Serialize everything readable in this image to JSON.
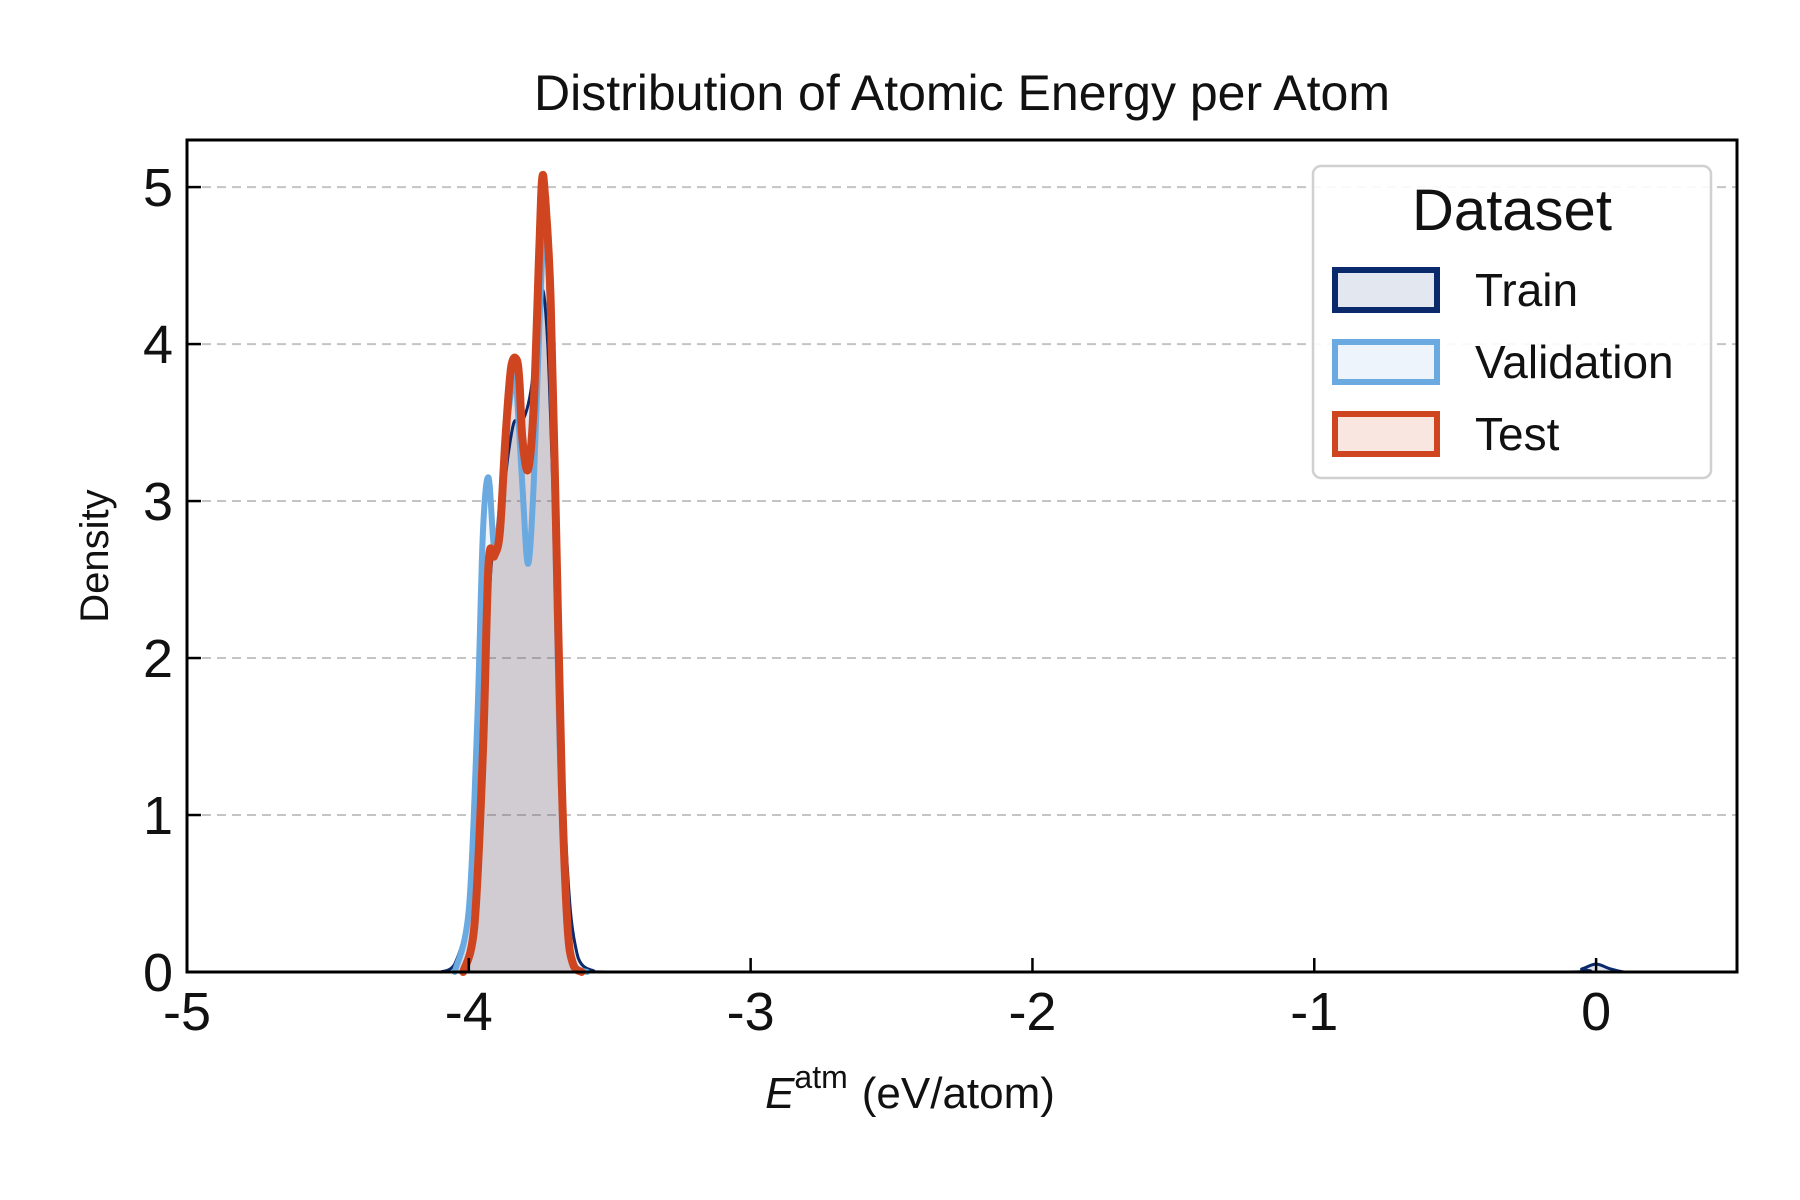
{
  "chart_data": {
    "type": "area",
    "title": "Distribution of Atomic Energy per Atom",
    "xlabel": {
      "symbol": "E",
      "superscript": "atm",
      "unit": "(eV/atom)"
    },
    "ylabel": "Density",
    "xlim": [
      -5,
      0.5
    ],
    "ylim": [
      0,
      5.3
    ],
    "xticks": [
      -5,
      -4,
      -3,
      -2,
      -1,
      0
    ],
    "xtick_labels": [
      "-5",
      "-4",
      "-3",
      "-2",
      "-1",
      "0"
    ],
    "yticks": [
      0,
      1,
      2,
      3,
      4,
      5
    ],
    "ytick_labels": [
      "0",
      "1",
      "2",
      "3",
      "4",
      "5"
    ],
    "grid": "y-dashed",
    "legend": {
      "title": "Dataset",
      "placement": "top-right"
    },
    "series": [
      {
        "name": "Train",
        "color": "#0b2a6b",
        "fill": "#e3e7f0",
        "x": [
          -4.1,
          -4.05,
          -4.0,
          -3.97,
          -3.94,
          -3.92,
          -3.9,
          -3.88,
          -3.86,
          -3.84,
          -3.82,
          -3.8,
          -3.78,
          -3.76,
          -3.74,
          -3.72,
          -3.7,
          -3.68,
          -3.66,
          -3.64,
          -3.62,
          -3.6,
          -3.56,
          -3.5,
          -3.0,
          -2.0,
          -1.0,
          -0.1,
          -0.05,
          0.0,
          0.05,
          0.1,
          0.15
        ],
        "y": [
          0.0,
          0.05,
          0.4,
          1.2,
          2.0,
          2.6,
          2.8,
          3.0,
          3.3,
          3.5,
          3.5,
          3.55,
          3.7,
          4.0,
          4.35,
          4.0,
          3.0,
          2.0,
          1.0,
          0.4,
          0.15,
          0.05,
          0.01,
          0.0,
          0.0,
          0.0,
          0.0,
          0.0,
          0.02,
          0.05,
          0.02,
          0.0,
          0.0
        ]
      },
      {
        "name": "Validation",
        "color": "#6aaae0",
        "fill": "#eef4fb",
        "x": [
          -4.05,
          -4.0,
          -3.97,
          -3.95,
          -3.93,
          -3.91,
          -3.89,
          -3.87,
          -3.85,
          -3.84,
          -3.83,
          -3.81,
          -3.79,
          -3.77,
          -3.75,
          -3.73,
          -3.72,
          -3.7,
          -3.68,
          -3.66,
          -3.64,
          -3.62,
          -3.58
        ],
        "y": [
          0.0,
          0.4,
          1.6,
          2.8,
          3.15,
          2.7,
          2.9,
          3.4,
          3.7,
          3.85,
          3.7,
          3.1,
          2.6,
          3.1,
          4.1,
          4.9,
          4.7,
          3.4,
          1.6,
          0.6,
          0.15,
          0.03,
          0.0
        ]
      },
      {
        "name": "Test",
        "color": "#cf4520",
        "fill": "#f9e6e0",
        "x": [
          -4.02,
          -3.98,
          -3.95,
          -3.93,
          -3.91,
          -3.89,
          -3.87,
          -3.85,
          -3.83,
          -3.82,
          -3.81,
          -3.79,
          -3.77,
          -3.75,
          -3.74,
          -3.73,
          -3.71,
          -3.69,
          -3.67,
          -3.65,
          -3.63,
          -3.6
        ],
        "y": [
          0.0,
          0.3,
          1.4,
          2.6,
          2.65,
          2.8,
          3.4,
          3.85,
          3.9,
          3.75,
          3.4,
          3.2,
          3.6,
          4.6,
          5.05,
          4.95,
          4.3,
          2.8,
          1.2,
          0.3,
          0.05,
          0.0
        ]
      }
    ]
  }
}
